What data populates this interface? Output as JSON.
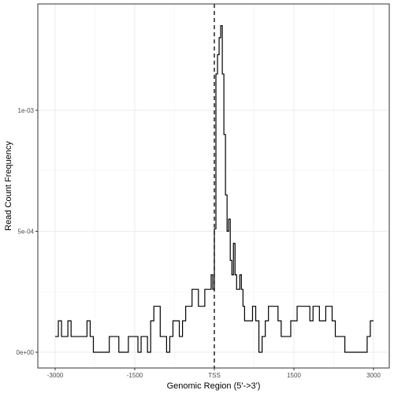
{
  "chart_data": {
    "type": "line",
    "title": "",
    "xlabel": "Genomic Region (5'->3')",
    "ylabel": "Read Count Frequency",
    "xlim": [
      -3000,
      3000
    ],
    "ylim": [
      0,
      0.00136
    ],
    "x_ticks": [
      {
        "value": -3000,
        "label": "-3000"
      },
      {
        "value": -1500,
        "label": "-1500"
      },
      {
        "value": 0,
        "label": "TSS"
      },
      {
        "value": 1500,
        "label": "1500"
      },
      {
        "value": 3000,
        "label": "3000"
      }
    ],
    "y_ticks": [
      {
        "value": 0,
        "label": "0e+00"
      },
      {
        "value": 0.0005,
        "label": "5e-04"
      },
      {
        "value": 0.001,
        "label": "1e-03"
      }
    ],
    "grid": true,
    "vline": {
      "x": 0,
      "style": "dashed"
    },
    "series": [
      {
        "color": "#000000",
        "x": [
          -3000,
          -2940,
          -2880,
          -2820,
          -2760,
          -2700,
          -2640,
          -2580,
          -2520,
          -2460,
          -2400,
          -2340,
          -2280,
          -2220,
          -2160,
          -2100,
          -2040,
          -1980,
          -1920,
          -1860,
          -1800,
          -1740,
          -1680,
          -1620,
          -1560,
          -1500,
          -1440,
          -1380,
          -1320,
          -1260,
          -1200,
          -1140,
          -1080,
          -1020,
          -960,
          -900,
          -840,
          -780,
          -720,
          -660,
          -600,
          -540,
          -480,
          -420,
          -360,
          -300,
          -240,
          -180,
          -120,
          -60,
          -30,
          0,
          30,
          60,
          90,
          120,
          150,
          180,
          210,
          240,
          270,
          300,
          330,
          360,
          390,
          420,
          450,
          480,
          510,
          540,
          570,
          600,
          660,
          720,
          780,
          840,
          900,
          960,
          1020,
          1080,
          1140,
          1200,
          1260,
          1320,
          1380,
          1440,
          1500,
          1560,
          1620,
          1680,
          1740,
          1800,
          1860,
          1920,
          1980,
          2040,
          2100,
          2160,
          2220,
          2280,
          2340,
          2400,
          2460,
          2520,
          2580,
          2640,
          2700,
          2760,
          2820,
          2880,
          2940
        ],
        "y": [
          6.5e-05,
          0.00013,
          6.5e-05,
          6.5e-05,
          0.00013,
          6.5e-05,
          6.5e-05,
          6.5e-05,
          6.5e-05,
          6.5e-05,
          0.00013,
          6.5e-05,
          0.0,
          0.0,
          0.0,
          0.0,
          0.0,
          6.5e-05,
          6.5e-05,
          6.5e-05,
          0.0,
          0.0,
          0.0,
          6.5e-05,
          6.5e-05,
          6.5e-05,
          0.0,
          6.5e-05,
          6.5e-05,
          0.0,
          0.00013,
          0.00019,
          0.00019,
          6.5e-05,
          6.5e-05,
          0.0,
          6.5e-05,
          0.00013,
          0.00013,
          6.5e-05,
          0.00013,
          0.00019,
          0.00019,
          0.00026,
          0.00026,
          0.00019,
          0.00019,
          0.00026,
          0.00026,
          0.00032,
          0.00026,
          0.00051,
          0.00115,
          0.00123,
          0.0013,
          0.00135,
          0.00115,
          0.0009,
          0.00065,
          0.0005,
          0.00055,
          0.00038,
          0.00032,
          0.00045,
          0.00032,
          0.00026,
          0.00026,
          0.00032,
          0.00026,
          0.00019,
          0.00013,
          0.00013,
          0.00013,
          0.00019,
          0.00013,
          0.0,
          6.5e-05,
          0.00013,
          0.00019,
          0.00019,
          0.00019,
          0.00013,
          6.5e-05,
          6.5e-05,
          6.5e-05,
          0.00013,
          0.00013,
          0.00019,
          0.00019,
          0.00019,
          0.00019,
          0.00013,
          0.00019,
          0.00019,
          0.00013,
          0.00013,
          0.00019,
          0.00019,
          0.00013,
          6.5e-05,
          6.5e-05,
          6.5e-05,
          0.0,
          0.0,
          0.0,
          0.0,
          0.0,
          0.0,
          0.0,
          6.5e-05,
          0.00013
        ]
      }
    ]
  }
}
